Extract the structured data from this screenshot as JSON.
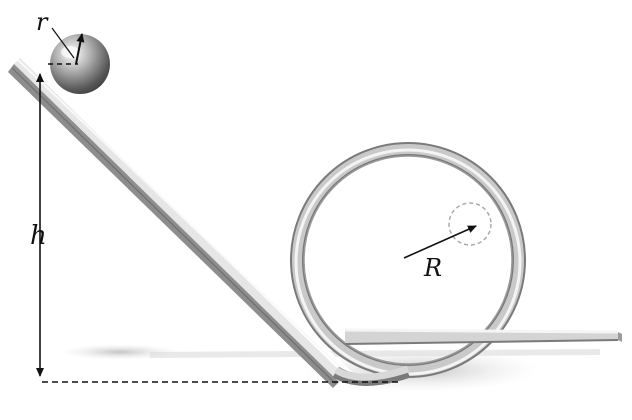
{
  "labels": {
    "ball_radius": "r",
    "height": "h",
    "loop_radius": "R"
  },
  "colors": {
    "rail_light": "#f4f4f4",
    "rail_mid": "#c9c9c9",
    "rail_dark": "#7a7a7a",
    "shadow": "#cfcfcf",
    "ball_highlight": "#ffffff",
    "ball_dark": "#3c3c3c",
    "arrow": "#111111",
    "dash_circle": "#aaaaaa"
  }
}
